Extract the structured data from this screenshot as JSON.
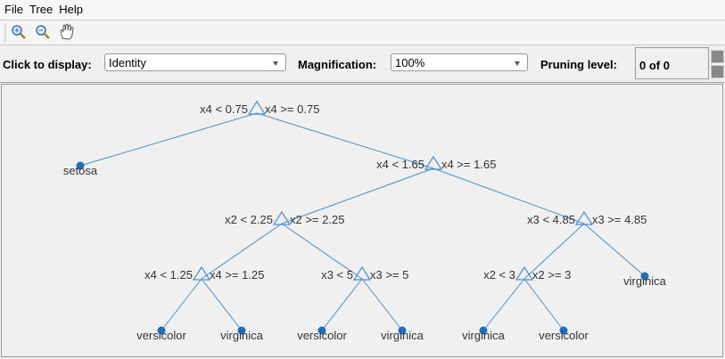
{
  "menu": [
    "File",
    "Tree",
    "Help"
  ],
  "controls": {
    "display_label": "Click to display:",
    "display_value": "Identity",
    "magnification_label": "Magnification:",
    "magnification_value": "100%",
    "pruning_label": "Pruning level:",
    "pruning_value": "0 of 0"
  },
  "tree": {
    "nodes": [
      {
        "left": "x4 < 0.75",
        "right": "x4 >= 0.75"
      },
      {
        "label": "setosa"
      },
      {
        "left": "x4 < 1.65",
        "right": "x4 >= 1.65"
      },
      {
        "left": "x2 < 2.25",
        "right": "x2 >= 2.25"
      },
      {
        "left": "x3 < 4.85",
        "right": "x3 >= 4.85"
      },
      {
        "left": "x4 < 1.25",
        "right": "x4 >= 1.25"
      },
      {
        "left": "x3 < 5",
        "right": "x3 >= 5"
      },
      {
        "left": "x2 < 3",
        "right": "x2 >= 3"
      },
      {
        "label": "virginica"
      },
      {
        "label": "versicolor"
      },
      {
        "label": "virginica"
      },
      {
        "label": "versicolor"
      },
      {
        "label": "virginica"
      },
      {
        "label": "virginica"
      },
      {
        "label": "versicolor"
      }
    ]
  }
}
